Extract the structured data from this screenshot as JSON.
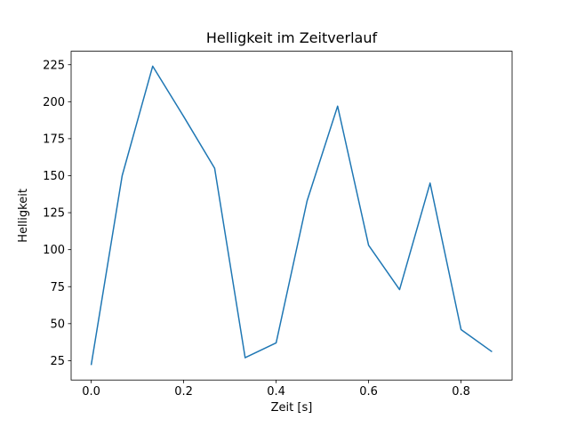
{
  "chart_data": {
    "type": "line",
    "title": "Helligkeit im Zeitverlauf",
    "xlabel": "Zeit [s]",
    "ylabel": "Helligkeit",
    "x": [
      0.0,
      0.067,
      0.133,
      0.2,
      0.267,
      0.333,
      0.4,
      0.467,
      0.533,
      0.6,
      0.667,
      0.733,
      0.8,
      0.867
    ],
    "y": [
      22,
      150,
      224,
      190,
      155,
      27,
      37,
      133,
      197,
      103,
      73,
      145,
      46,
      31
    ],
    "xlim": [
      -0.0434,
      0.9104
    ],
    "ylim": [
      11.9,
      234.1
    ],
    "xticks": {
      "values": [
        0.0,
        0.2,
        0.4,
        0.6,
        0.8
      ],
      "labels": [
        "0.0",
        "0.2",
        "0.4",
        "0.6",
        "0.8"
      ]
    },
    "yticks": {
      "values": [
        25,
        50,
        75,
        100,
        125,
        150,
        175,
        200,
        225
      ],
      "labels": [
        "25",
        "50",
        "75",
        "100",
        "125",
        "150",
        "175",
        "200",
        "225"
      ]
    },
    "line_color": "#1f77b4",
    "axes_color": "#000000",
    "background": "#ffffff",
    "grid": false,
    "legend": null
  }
}
